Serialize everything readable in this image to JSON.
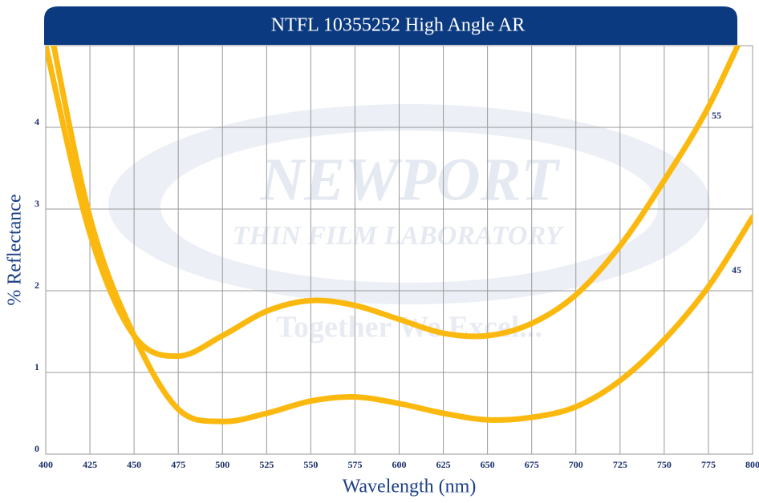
{
  "chart_data": {
    "type": "line",
    "title": "NTFL 10355252 High Angle AR",
    "x_label": "Wavelength (nm)",
    "y_label": "% Reflectance",
    "watermark": [
      "NEWPORT",
      "THIN FILM LABORATORY",
      "Together We Excel..."
    ],
    "x": [
      400,
      425,
      450,
      475,
      500,
      525,
      550,
      575,
      600,
      625,
      650,
      675,
      700,
      725,
      750,
      775,
      800
    ],
    "series": [
      {
        "name": "55",
        "color": "#fbb910",
        "values": [
          5.0,
          2.7,
          1.45,
          1.2,
          1.45,
          1.75,
          1.88,
          1.82,
          1.65,
          1.48,
          1.45,
          1.6,
          1.95,
          2.55,
          3.35,
          4.25,
          5.4
        ]
      },
      {
        "name": "45",
        "color": "#fbb910",
        "values": [
          5.5,
          2.9,
          1.45,
          0.55,
          0.4,
          0.5,
          0.65,
          0.7,
          0.62,
          0.5,
          0.42,
          0.45,
          0.58,
          0.9,
          1.4,
          2.05,
          2.9
        ]
      }
    ],
    "xlim": [
      400,
      800
    ],
    "ylim": [
      0,
      5
    ],
    "xticks": [
      400,
      425,
      450,
      475,
      500,
      525,
      550,
      575,
      600,
      625,
      650,
      675,
      700,
      725,
      750,
      775,
      800
    ],
    "yticks": [
      0,
      1,
      2,
      3,
      4
    ],
    "grid": true
  }
}
